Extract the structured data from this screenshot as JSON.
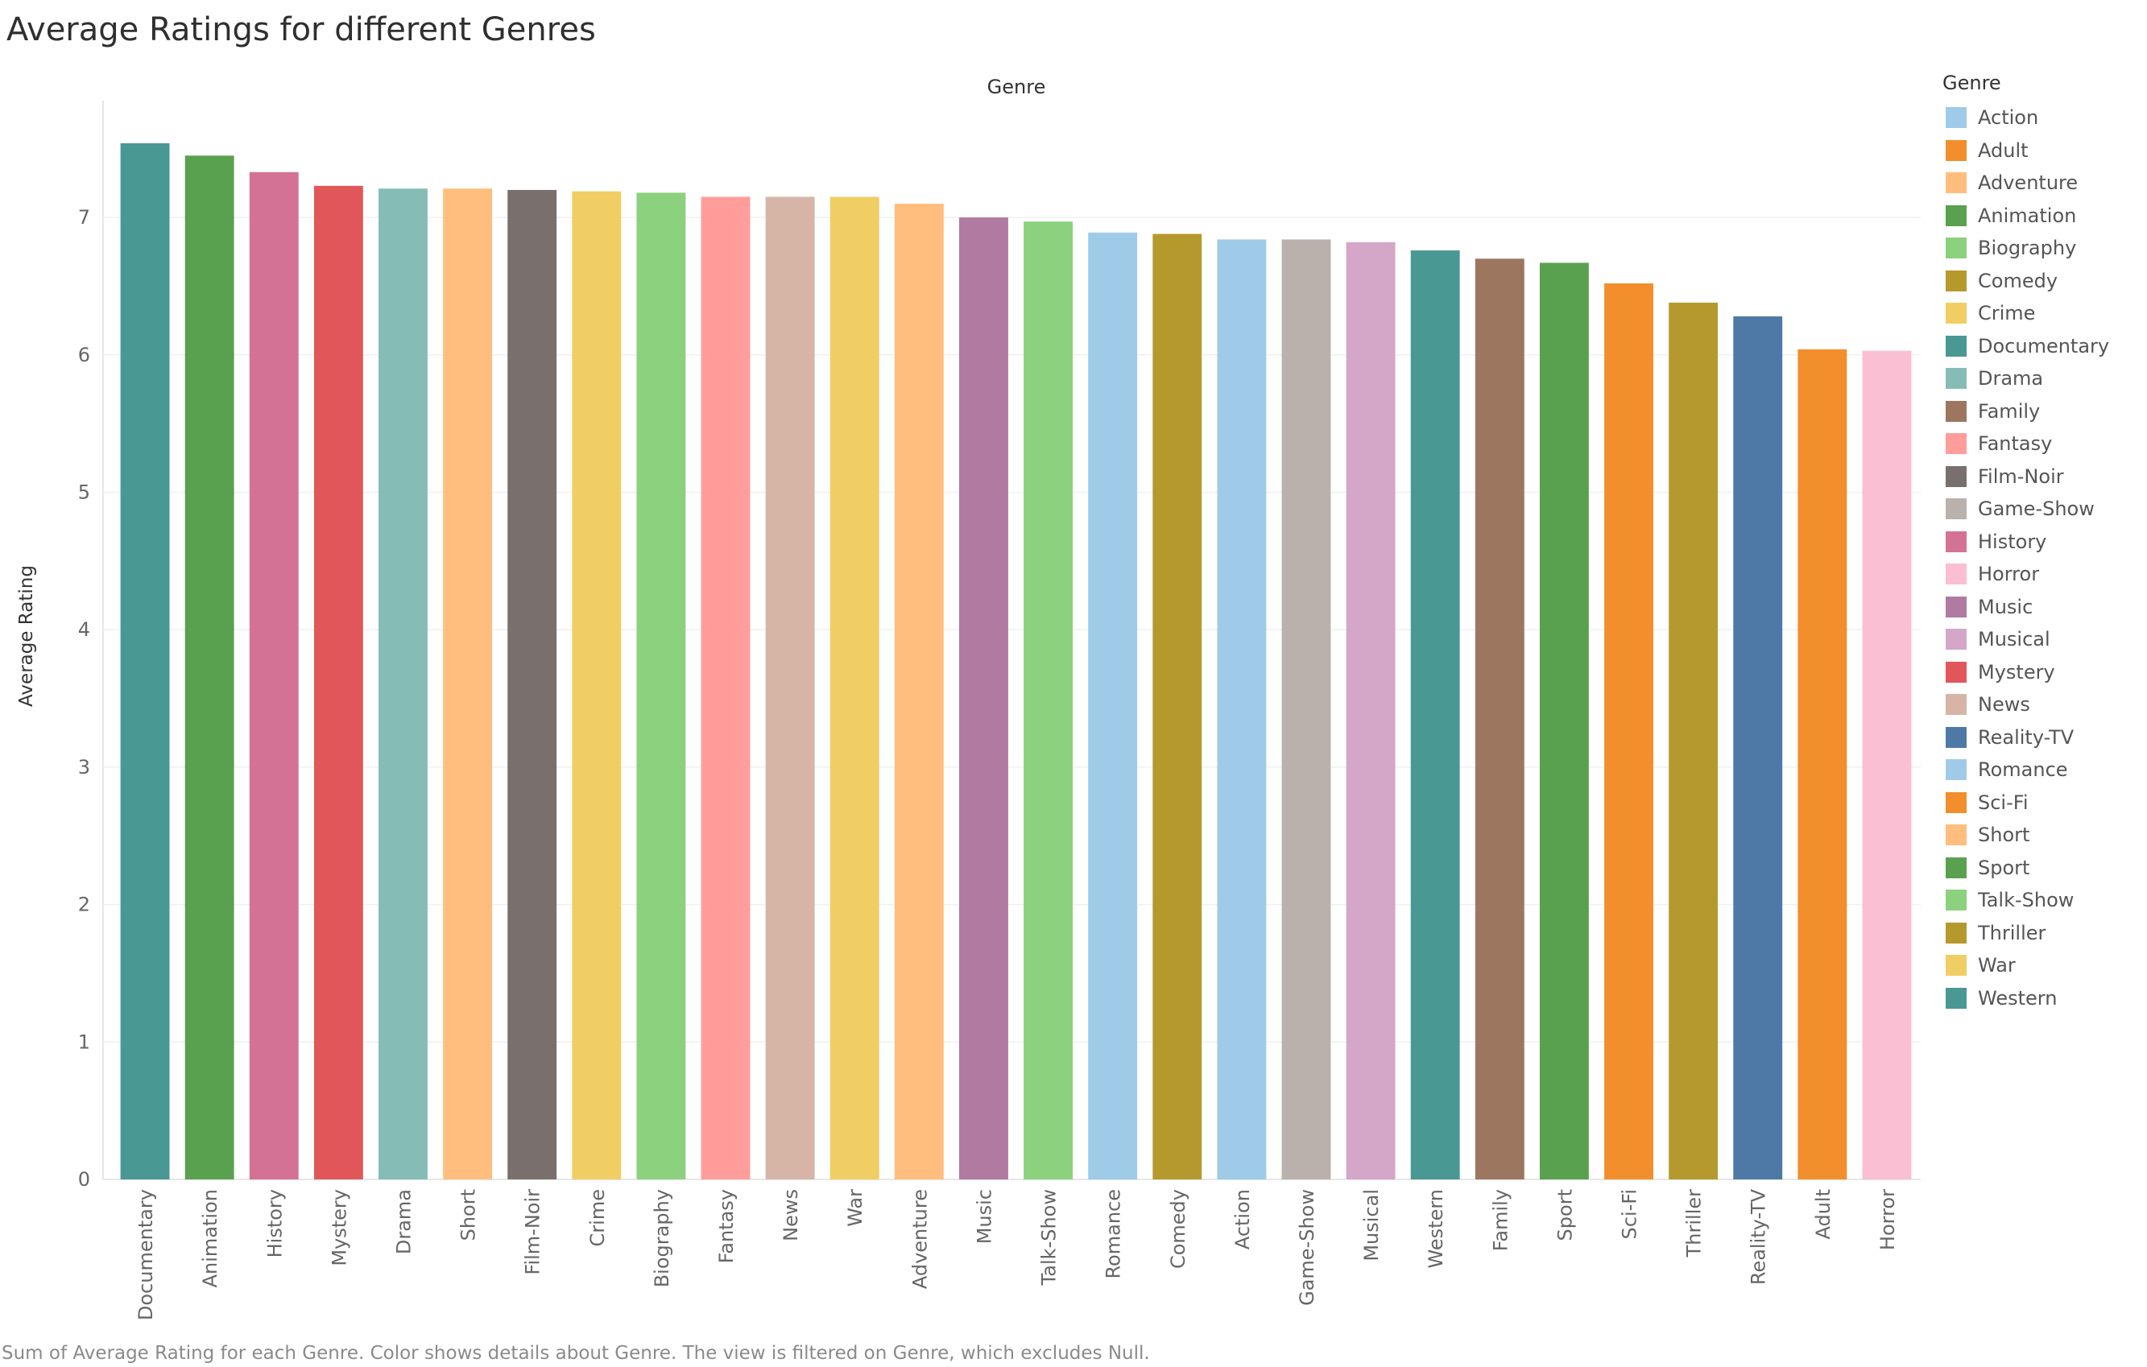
{
  "title": "Average Ratings for different Genres",
  "footer": "Sum of Average Rating for each Genre.  Color shows details about Genre. The view is filtered on Genre, which excludes Null.",
  "colors": {
    "Action": "#a0cbe8",
    "Adult": "#f28e2b",
    "Adventure": "#ffbe7d",
    "Animation": "#59a14f",
    "Biography": "#8cd17d",
    "Comedy": "#b6992d",
    "Crime": "#f1ce63",
    "Documentary": "#499894",
    "Drama": "#86bcb6",
    "Family": "#9d7660",
    "Fantasy": "#ff9d9a",
    "Film-Noir": "#79706e",
    "Game-Show": "#bab0ac",
    "History": "#d37295",
    "Horror": "#fabfd2",
    "Music": "#b07aa1",
    "Musical": "#d4a6c8",
    "Mystery": "#e15759",
    "News": "#d7b5a6",
    "Reality-TV": "#4e79a7",
    "Romance": "#a0cbe8",
    "Sci-Fi": "#f28e2b",
    "Short": "#ffbe7d",
    "Sport": "#59a14f",
    "Talk-Show": "#8cd17d",
    "Thriller": "#b6992d",
    "War": "#f1ce63",
    "Western": "#499894"
  },
  "legend": {
    "title": "Genre",
    "items": [
      "Action",
      "Adult",
      "Adventure",
      "Animation",
      "Biography",
      "Comedy",
      "Crime",
      "Documentary",
      "Drama",
      "Family",
      "Fantasy",
      "Film-Noir",
      "Game-Show",
      "History",
      "Horror",
      "Music",
      "Musical",
      "Mystery",
      "News",
      "Reality-TV",
      "Romance",
      "Sci-Fi",
      "Short",
      "Sport",
      "Talk-Show",
      "Thriller",
      "War",
      "Western"
    ]
  },
  "chart_data": {
    "type": "bar",
    "title": "Average Ratings for different Genres",
    "column_header": "Genre",
    "xlabel": "",
    "ylabel": "Average Rating",
    "ylim": [
      0,
      7.85
    ],
    "yticks": [
      0,
      1,
      2,
      3,
      4,
      5,
      6,
      7
    ],
    "grid": true,
    "legend_position": "right",
    "categories": [
      "Documentary",
      "Animation",
      "History",
      "Mystery",
      "Drama",
      "Short",
      "Film-Noir",
      "Crime",
      "Biography",
      "Fantasy",
      "News",
      "War",
      "Adventure",
      "Music",
      "Talk-Show",
      "Romance",
      "Comedy",
      "Action",
      "Game-Show",
      "Musical",
      "Western",
      "Family",
      "Sport",
      "Sci-Fi",
      "Thriller",
      "Reality-TV",
      "Adult",
      "Horror"
    ],
    "values": [
      7.54,
      7.45,
      7.33,
      7.23,
      7.21,
      7.21,
      7.2,
      7.19,
      7.18,
      7.15,
      7.15,
      7.15,
      7.1,
      7.0,
      6.97,
      6.89,
      6.88,
      6.84,
      6.84,
      6.82,
      6.76,
      6.7,
      6.67,
      6.52,
      6.38,
      6.28,
      6.04,
      6.03
    ]
  }
}
